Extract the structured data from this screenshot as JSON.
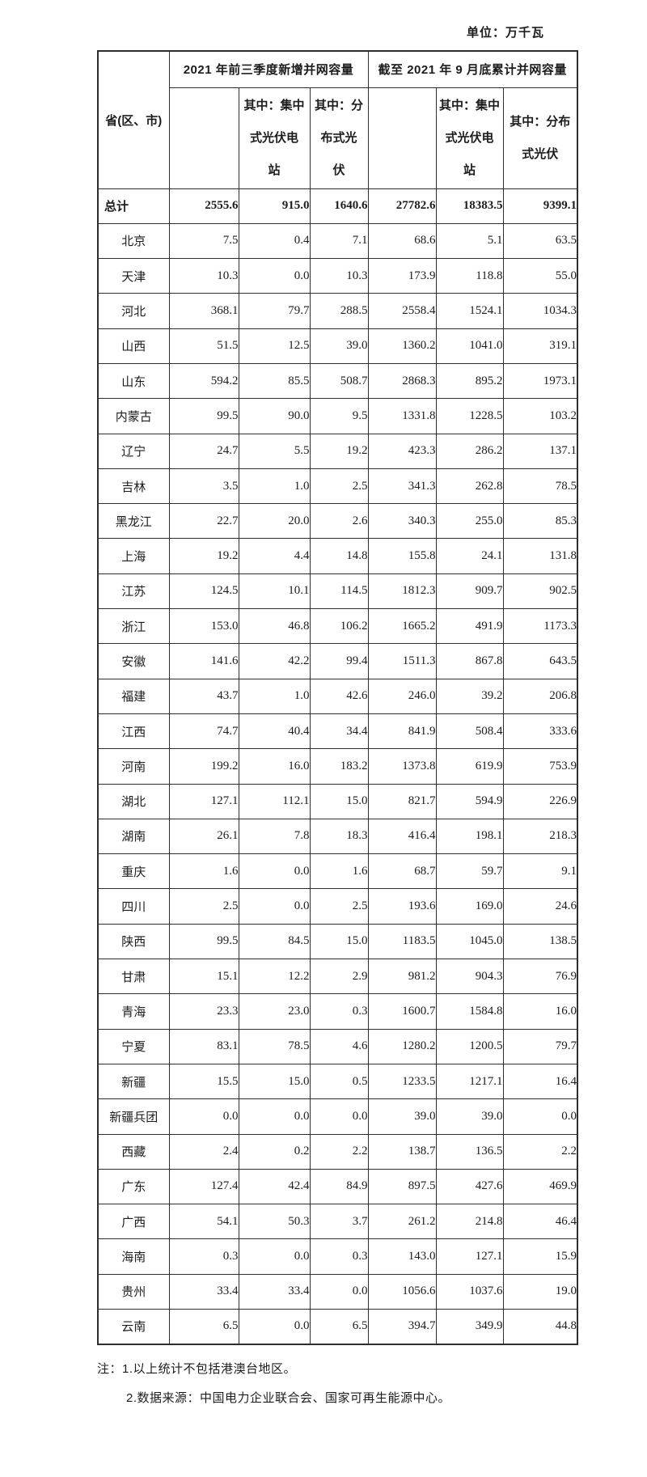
{
  "unit_label": "单位：万千瓦",
  "colors": {
    "background": "#ffffff",
    "border": "#2e2e2e",
    "text": "#1c1c1c"
  },
  "table": {
    "header": {
      "province": "省(区、市)",
      "group_new": "2021 年前三季度新增并网容量",
      "group_cumulative": "截至 2021 年 9 月底累计并网容量",
      "sub_new_centralized": "其中：集中\n式光伏电\n站",
      "sub_new_distributed": "其中：分\n布式光\n伏",
      "sub_cum_centralized": "其中：集中\n式光伏电\n站",
      "sub_cum_distributed": "其中：分布\n式光伏"
    },
    "total_row": {
      "name": "总计",
      "values": [
        "2555.6",
        "915.0",
        "1640.6",
        "27782.6",
        "18383.5",
        "9399.1"
      ]
    },
    "rows": [
      {
        "name": "北京",
        "values": [
          "7.5",
          "0.4",
          "7.1",
          "68.6",
          "5.1",
          "63.5"
        ]
      },
      {
        "name": "天津",
        "values": [
          "10.3",
          "0.0",
          "10.3",
          "173.9",
          "118.8",
          "55.0"
        ]
      },
      {
        "name": "河北",
        "values": [
          "368.1",
          "79.7",
          "288.5",
          "2558.4",
          "1524.1",
          "1034.3"
        ]
      },
      {
        "name": "山西",
        "values": [
          "51.5",
          "12.5",
          "39.0",
          "1360.2",
          "1041.0",
          "319.1"
        ]
      },
      {
        "name": "山东",
        "values": [
          "594.2",
          "85.5",
          "508.7",
          "2868.3",
          "895.2",
          "1973.1"
        ]
      },
      {
        "name": "内蒙古",
        "values": [
          "99.5",
          "90.0",
          "9.5",
          "1331.8",
          "1228.5",
          "103.2"
        ]
      },
      {
        "name": "辽宁",
        "values": [
          "24.7",
          "5.5",
          "19.2",
          "423.3",
          "286.2",
          "137.1"
        ]
      },
      {
        "name": "吉林",
        "values": [
          "3.5",
          "1.0",
          "2.5",
          "341.3",
          "262.8",
          "78.5"
        ]
      },
      {
        "name": "黑龙江",
        "values": [
          "22.7",
          "20.0",
          "2.6",
          "340.3",
          "255.0",
          "85.3"
        ]
      },
      {
        "name": "上海",
        "values": [
          "19.2",
          "4.4",
          "14.8",
          "155.8",
          "24.1",
          "131.8"
        ]
      },
      {
        "name": "江苏",
        "values": [
          "124.5",
          "10.1",
          "114.5",
          "1812.3",
          "909.7",
          "902.5"
        ]
      },
      {
        "name": "浙江",
        "values": [
          "153.0",
          "46.8",
          "106.2",
          "1665.2",
          "491.9",
          "1173.3"
        ]
      },
      {
        "name": "安徽",
        "values": [
          "141.6",
          "42.2",
          "99.4",
          "1511.3",
          "867.8",
          "643.5"
        ]
      },
      {
        "name": "福建",
        "values": [
          "43.7",
          "1.0",
          "42.6",
          "246.0",
          "39.2",
          "206.8"
        ]
      },
      {
        "name": "江西",
        "values": [
          "74.7",
          "40.4",
          "34.4",
          "841.9",
          "508.4",
          "333.6"
        ]
      },
      {
        "name": "河南",
        "values": [
          "199.2",
          "16.0",
          "183.2",
          "1373.8",
          "619.9",
          "753.9"
        ]
      },
      {
        "name": "湖北",
        "values": [
          "127.1",
          "112.1",
          "15.0",
          "821.7",
          "594.9",
          "226.9"
        ]
      },
      {
        "name": "湖南",
        "values": [
          "26.1",
          "7.8",
          "18.3",
          "416.4",
          "198.1",
          "218.3"
        ]
      },
      {
        "name": "重庆",
        "values": [
          "1.6",
          "0.0",
          "1.6",
          "68.7",
          "59.7",
          "9.1"
        ]
      },
      {
        "name": "四川",
        "values": [
          "2.5",
          "0.0",
          "2.5",
          "193.6",
          "169.0",
          "24.6"
        ]
      },
      {
        "name": "陕西",
        "values": [
          "99.5",
          "84.5",
          "15.0",
          "1183.5",
          "1045.0",
          "138.5"
        ]
      },
      {
        "name": "甘肃",
        "values": [
          "15.1",
          "12.2",
          "2.9",
          "981.2",
          "904.3",
          "76.9"
        ]
      },
      {
        "name": "青海",
        "values": [
          "23.3",
          "23.0",
          "0.3",
          "1600.7",
          "1584.8",
          "16.0"
        ]
      },
      {
        "name": "宁夏",
        "values": [
          "83.1",
          "78.5",
          "4.6",
          "1280.2",
          "1200.5",
          "79.7"
        ]
      },
      {
        "name": "新疆",
        "values": [
          "15.5",
          "15.0",
          "0.5",
          "1233.5",
          "1217.1",
          "16.4"
        ]
      },
      {
        "name": "新疆兵团",
        "values": [
          "0.0",
          "0.0",
          "0.0",
          "39.0",
          "39.0",
          "0.0"
        ]
      },
      {
        "name": "西藏",
        "values": [
          "2.4",
          "0.2",
          "2.2",
          "138.7",
          "136.5",
          "2.2"
        ]
      },
      {
        "name": "广东",
        "values": [
          "127.4",
          "42.4",
          "84.9",
          "897.5",
          "427.6",
          "469.9"
        ]
      },
      {
        "name": "广西",
        "values": [
          "54.1",
          "50.3",
          "3.7",
          "261.2",
          "214.8",
          "46.4"
        ]
      },
      {
        "name": "海南",
        "values": [
          "0.3",
          "0.0",
          "0.3",
          "143.0",
          "127.1",
          "15.9"
        ]
      },
      {
        "name": "贵州",
        "values": [
          "33.4",
          "33.4",
          "0.0",
          "1056.6",
          "1037.6",
          "19.0"
        ]
      },
      {
        "name": "云南",
        "values": [
          "6.5",
          "0.0",
          "6.5",
          "394.7",
          "349.9",
          "44.8"
        ]
      }
    ]
  },
  "notes": [
    "注：1.以上统计不包括港澳台地区。",
    "2.数据来源：中国电力企业联合会、国家可再生能源中心。"
  ]
}
